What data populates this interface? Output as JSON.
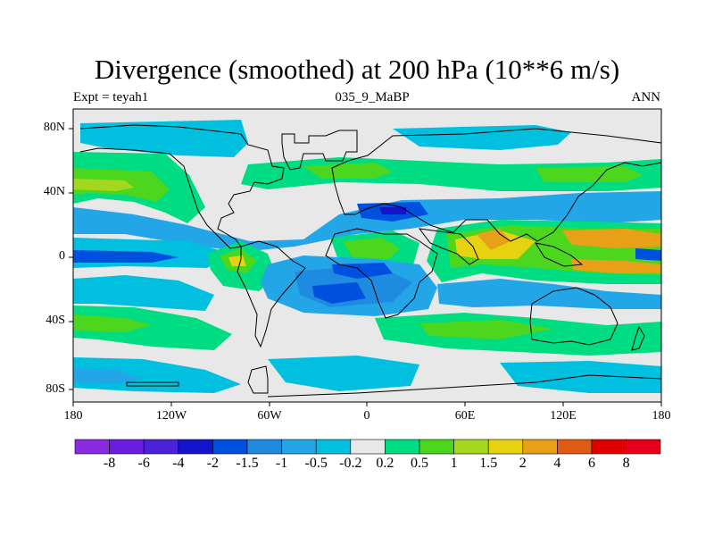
{
  "title": "Divergence (smoothed) at 200 hPa (10**6 m/s)",
  "subtitle_left": "Expt = teyah1",
  "subtitle_center": "035_9_MaBP",
  "subtitle_right": "ANN",
  "lat_labels": [
    "80N",
    "40N",
    "0",
    "40S",
    "80S"
  ],
  "lon_labels": [
    "180",
    "120W",
    "60W",
    "0",
    "60E",
    "120E",
    "180"
  ],
  "colorbar": {
    "labels": [
      "-8",
      "-6",
      "-4",
      "-2",
      "-1.5",
      "-1",
      "-0.5",
      "-0.2",
      "0.2",
      "0.5",
      "1",
      "1.5",
      "2",
      "4",
      "6",
      "8"
    ],
    "colors": [
      "#8a2be2",
      "#6a1ce0",
      "#4b22d8",
      "#1414cc",
      "#0050e0",
      "#1e8be0",
      "#22a6e8",
      "#00bfdf",
      "#e8e8e8",
      "#00dc82",
      "#4cd61e",
      "#a4d81e",
      "#e6d20e",
      "#e8a018",
      "#e05a14",
      "#e00000",
      "#e8001a"
    ]
  },
  "map_colors": {
    "neutral": "#e8e8e8",
    "neg_light": "#00bfdf",
    "neg_mid": "#22a6e8",
    "neg_med": "#1e8be0",
    "neg_strong": "#0050e0",
    "neg_deep": "#1414cc",
    "pos_light": "#00dc82",
    "pos_mid": "#4cd61e",
    "pos_med": "#a4d81e",
    "pos_yellow": "#e6d20e",
    "pos_orange": "#e8a018"
  }
}
